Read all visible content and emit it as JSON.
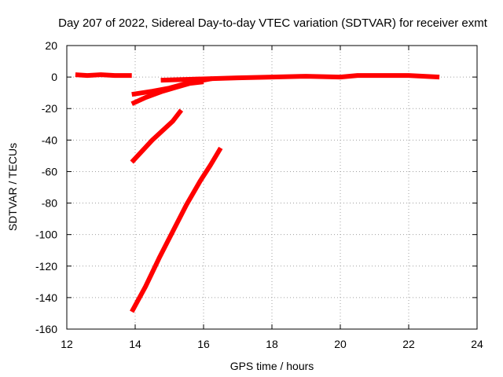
{
  "chart_data": {
    "type": "scatter",
    "title": "Day 207 of 2022, Sidereal Day-to-day VTEC variation (SDTVAR) for receiver exmt",
    "xlabel": "GPS time / hours",
    "ylabel": "SDTVAR / TECUs",
    "xlim": [
      12,
      24
    ],
    "ylim": [
      -160,
      20
    ],
    "xticks": [
      12,
      14,
      16,
      18,
      20,
      22,
      24
    ],
    "yticks": [
      20,
      0,
      -20,
      -40,
      -60,
      -80,
      -100,
      -120,
      -140,
      -160
    ],
    "grid": true,
    "color": "#ff0000",
    "series": [
      {
        "points": [
          [
            12.25,
            1.5
          ],
          [
            12.6,
            1.0
          ],
          [
            13.0,
            1.5
          ],
          [
            13.4,
            1.0
          ],
          [
            13.9,
            1.0
          ]
        ]
      },
      {
        "points": [
          [
            14.75,
            -2
          ],
          [
            15.5,
            -1.5
          ],
          [
            16.25,
            -1
          ],
          [
            17.0,
            -0.5
          ],
          [
            18.0,
            0
          ],
          [
            19.0,
            0.5
          ],
          [
            20.0,
            0
          ],
          [
            20.5,
            1.0
          ],
          [
            21.0,
            1.0
          ],
          [
            22.0,
            1.0
          ],
          [
            22.9,
            0
          ]
        ]
      },
      {
        "points": [
          [
            13.9,
            -11
          ],
          [
            14.5,
            -9
          ],
          [
            15.0,
            -7
          ],
          [
            15.5,
            -4
          ],
          [
            16.0,
            -2
          ],
          [
            16.25,
            -1
          ]
        ]
      },
      {
        "points": [
          [
            13.9,
            -17
          ],
          [
            14.3,
            -13
          ],
          [
            14.8,
            -9
          ],
          [
            15.2,
            -6.5
          ],
          [
            15.6,
            -4
          ],
          [
            16.0,
            -3
          ]
        ]
      },
      {
        "points": [
          [
            13.9,
            -54
          ],
          [
            14.2,
            -47
          ],
          [
            14.5,
            -40
          ],
          [
            14.8,
            -34
          ],
          [
            15.1,
            -28
          ],
          [
            15.35,
            -21
          ]
        ]
      },
      {
        "points": [
          [
            13.9,
            -149
          ],
          [
            14.3,
            -133
          ],
          [
            14.7,
            -115
          ],
          [
            15.1,
            -98
          ],
          [
            15.5,
            -81
          ],
          [
            15.9,
            -66
          ],
          [
            16.2,
            -56
          ],
          [
            16.5,
            -45
          ]
        ]
      }
    ]
  }
}
